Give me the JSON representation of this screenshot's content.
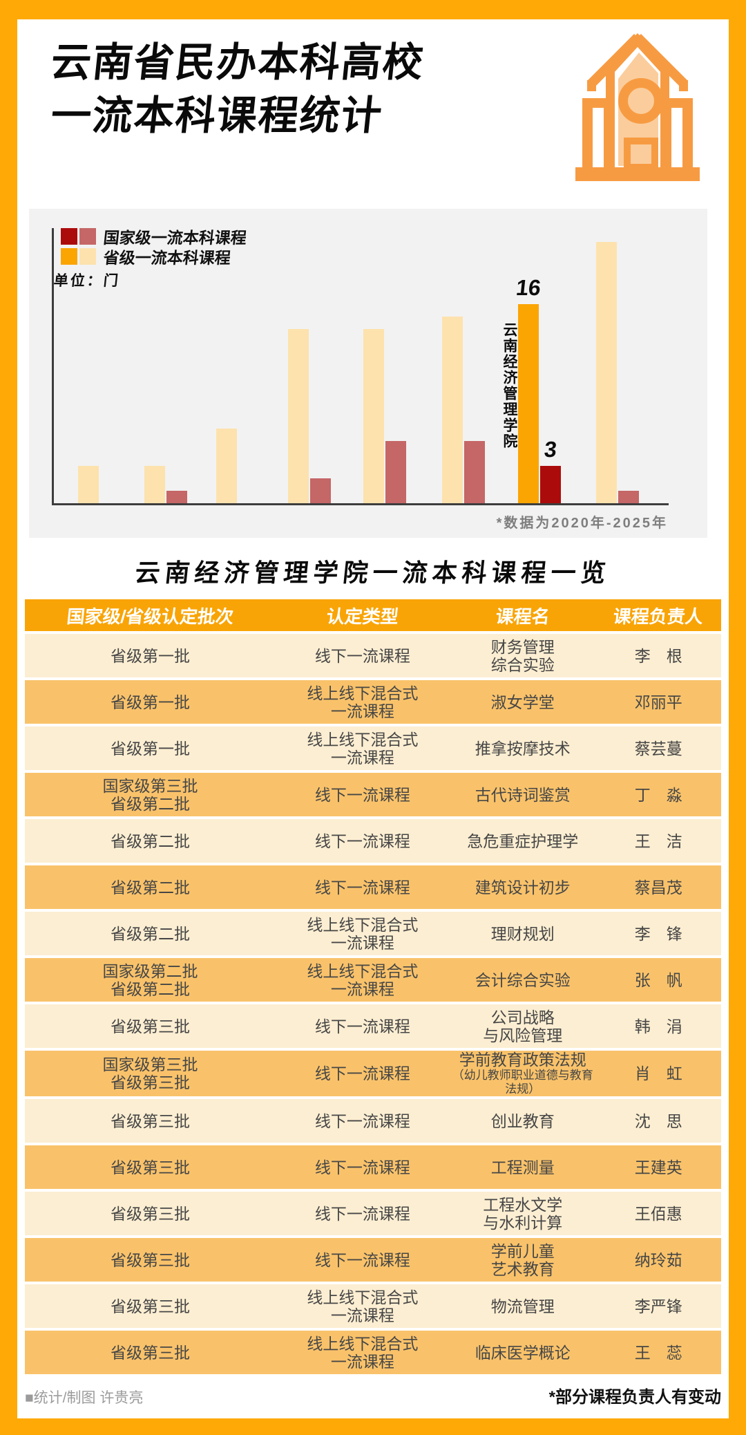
{
  "colors": {
    "frame": "#FFA906",
    "panel_bg": "#F2F2F2",
    "bar_national": "#AC0B0C",
    "bar_national_other": "#C56667",
    "bar_provincial": "#FBA502",
    "bar_provincial_other": "#FDE2AD",
    "table_header_bg": "#F9A406",
    "row_bg": "#FCEED2",
    "row_alt_bg": "#F9C26A",
    "icon_stroke": "#F79B42",
    "icon_fill": "#FBCD9C"
  },
  "header": {
    "title_line1": "云南省民办本科高校",
    "title_line2": "一流本科课程统计"
  },
  "chart": {
    "legend": [
      {
        "label": "国家级一流本科课程"
      },
      {
        "label": "省级一流本科课程"
      }
    ],
    "unit_label": "单位：门",
    "highlight_school": "云南经济管理学院",
    "note": "*数据为2020年-2025年"
  },
  "chart_data": {
    "type": "bar",
    "unit": "门",
    "categories": [
      "",
      "",
      "",
      "",
      "",
      "",
      "云南经济管理学院",
      ""
    ],
    "series": [
      {
        "name": "省级一流本科课程",
        "values": [
          3,
          3,
          6,
          14,
          14,
          15,
          16,
          21
        ]
      },
      {
        "name": "国家级一流本科课程",
        "values": [
          0,
          1,
          0,
          2,
          5,
          5,
          3,
          1
        ]
      }
    ],
    "highlight_index": 6,
    "highlight_labels": {
      "省级一流本科课程": 16,
      "国家级一流本科课程": 3
    },
    "ylim": [
      0,
      22
    ],
    "grid": false,
    "legend_position": "top-left",
    "note": "*数据为2020年-2025年"
  },
  "table": {
    "title": "云南经济管理学院一流本科课程一览",
    "headers": [
      "国家级/省级认定批次",
      "认定类型",
      "课程名",
      "课程负责人"
    ],
    "rows": [
      {
        "batch": [
          "省级第一批"
        ],
        "type": [
          "线下一流课程"
        ],
        "course": [
          "财务管理",
          "综合实验"
        ],
        "leader": "李　根"
      },
      {
        "batch": [
          "省级第一批"
        ],
        "type": [
          "线上线下混合式",
          "一流课程"
        ],
        "course": [
          "淑女学堂"
        ],
        "leader": "邓丽平"
      },
      {
        "batch": [
          "省级第一批"
        ],
        "type": [
          "线上线下混合式",
          "一流课程"
        ],
        "course": [
          "推拿按摩技术"
        ],
        "leader": "蔡芸蔓"
      },
      {
        "batch": [
          "国家级第三批",
          "省级第二批"
        ],
        "type": [
          "线下一流课程"
        ],
        "course": [
          "古代诗词鉴赏"
        ],
        "leader": "丁　淼"
      },
      {
        "batch": [
          "省级第二批"
        ],
        "type": [
          "线下一流课程"
        ],
        "course": [
          "急危重症护理学"
        ],
        "leader": "王　洁"
      },
      {
        "batch": [
          "省级第二批"
        ],
        "type": [
          "线下一流课程"
        ],
        "course": [
          "建筑设计初步"
        ],
        "leader": "蔡昌茂"
      },
      {
        "batch": [
          "省级第二批"
        ],
        "type": [
          "线上线下混合式",
          "一流课程"
        ],
        "course": [
          "理财规划"
        ],
        "leader": "李　锋"
      },
      {
        "batch": [
          "国家级第二批",
          "省级第二批"
        ],
        "type": [
          "线上线下混合式",
          "一流课程"
        ],
        "course": [
          "会计综合实验"
        ],
        "leader": "张　帆"
      },
      {
        "batch": [
          "省级第三批"
        ],
        "type": [
          "线下一流课程"
        ],
        "course": [
          "公司战略",
          "与风险管理"
        ],
        "leader": "韩　涓"
      },
      {
        "batch": [
          "国家级第三批",
          "省级第三批"
        ],
        "type": [
          "线下一流课程"
        ],
        "course": [
          "学前教育政策法规"
        ],
        "course_sub": "（幼儿教师职业道德与教育法规）",
        "leader": "肖　虹"
      },
      {
        "batch": [
          "省级第三批"
        ],
        "type": [
          "线下一流课程"
        ],
        "course": [
          "创业教育"
        ],
        "leader": "沈　思"
      },
      {
        "batch": [
          "省级第三批"
        ],
        "type": [
          "线下一流课程"
        ],
        "course": [
          "工程测量"
        ],
        "leader": "王建英"
      },
      {
        "batch": [
          "省级第三批"
        ],
        "type": [
          "线下一流课程"
        ],
        "course": [
          "工程水文学",
          "与水利计算"
        ],
        "leader": "王佰惠"
      },
      {
        "batch": [
          "省级第三批"
        ],
        "type": [
          "线下一流课程"
        ],
        "course": [
          "学前儿童",
          "艺术教育"
        ],
        "leader": "纳玲茹"
      },
      {
        "batch": [
          "省级第三批"
        ],
        "type": [
          "线上线下混合式",
          "一流课程"
        ],
        "course": [
          "物流管理"
        ],
        "leader": "李严锋"
      },
      {
        "batch": [
          "省级第三批"
        ],
        "type": [
          "线上线下混合式",
          "一流课程"
        ],
        "course": [
          "临床医学概论"
        ],
        "leader": "王　蕊"
      }
    ]
  },
  "footer": {
    "credit": "■统计/制图 许贵亮",
    "note": "*部分课程负责人有变动"
  }
}
